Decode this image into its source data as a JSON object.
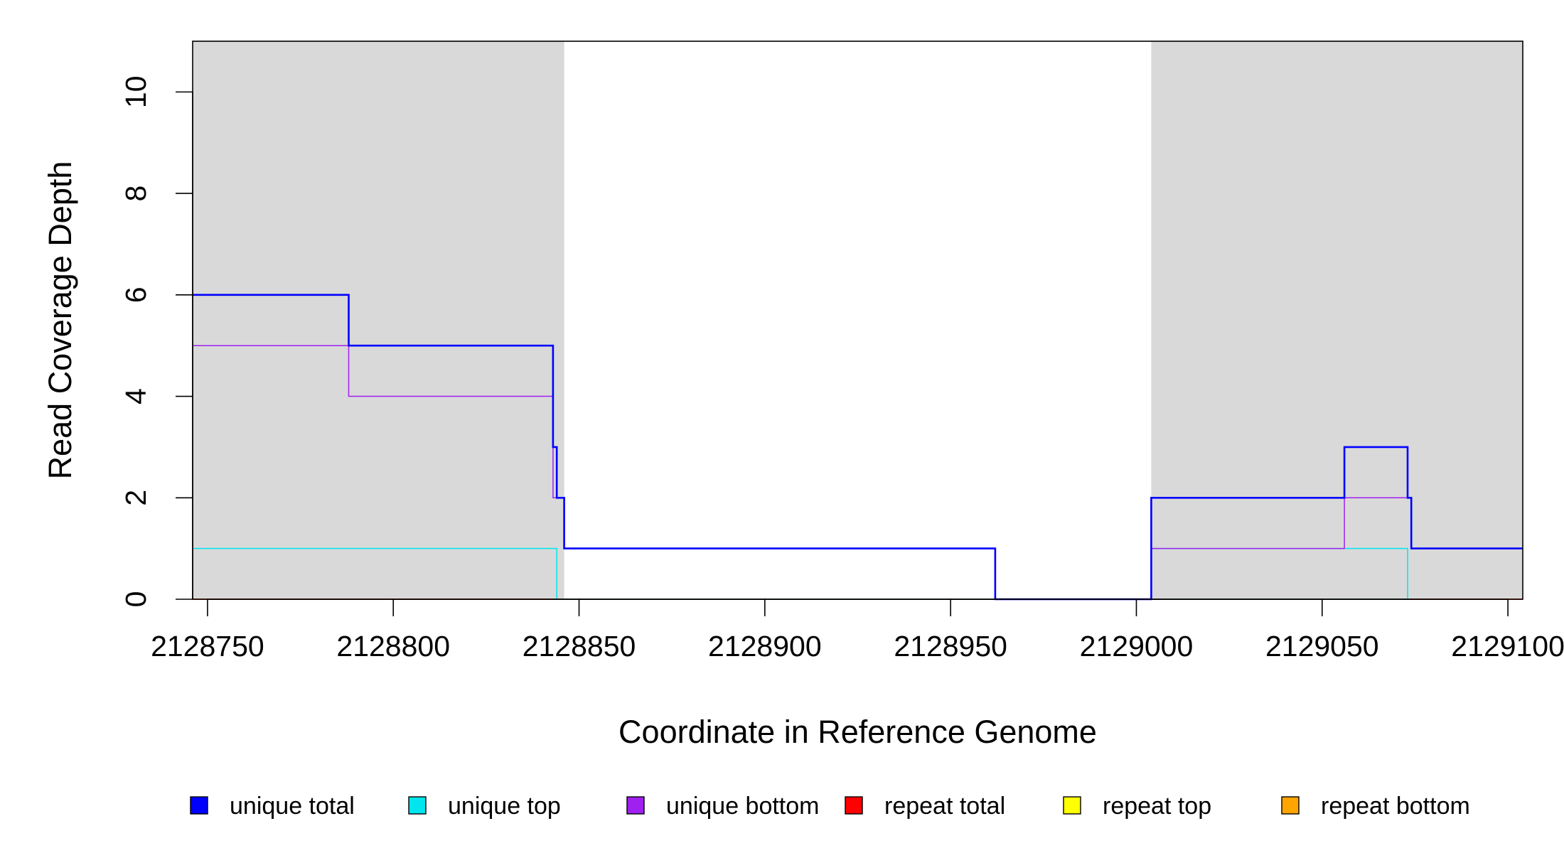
{
  "chart_data": {
    "type": "line",
    "step": true,
    "xlabel": "Coordinate in Reference Genome",
    "ylabel": "Read Coverage Depth",
    "xlim": [
      2128746,
      2129104
    ],
    "ylim": [
      0,
      11
    ],
    "xticks": [
      "2128750",
      "2128800",
      "2128850",
      "2128900",
      "2128950",
      "2129000",
      "2129050",
      "2129100"
    ],
    "yticks": [
      "0",
      "2",
      "4",
      "6",
      "8",
      "10"
    ],
    "shaded_regions": [
      [
        2128746,
        2128846
      ],
      [
        2129004,
        2129104
      ]
    ],
    "shade_color": "#d9d9d9",
    "series": [
      {
        "name": "unique total",
        "color": "#0000ff",
        "width": 2.6,
        "points": [
          [
            2128746,
            6
          ],
          [
            2128788,
            6
          ],
          [
            2128788,
            5
          ],
          [
            2128843,
            5
          ],
          [
            2128843,
            3
          ],
          [
            2128844,
            3
          ],
          [
            2128844,
            2
          ],
          [
            2128846,
            2
          ],
          [
            2128846,
            1
          ],
          [
            2128962,
            1
          ],
          [
            2128962,
            0
          ],
          [
            2129004,
            0
          ],
          [
            2129004,
            2
          ],
          [
            2129056,
            2
          ],
          [
            2129056,
            3
          ],
          [
            2129073,
            3
          ],
          [
            2129073,
            2
          ],
          [
            2129074,
            2
          ],
          [
            2129074,
            1
          ],
          [
            2129104,
            1
          ]
        ]
      },
      {
        "name": "unique top",
        "color": "#00e5ee",
        "width": 1.5,
        "points": [
          [
            2128746,
            1
          ],
          [
            2128844,
            1
          ],
          [
            2128844,
            0
          ],
          [
            2129073,
            0
          ],
          [
            2129073,
            1
          ],
          [
            2129004,
            1
          ]
        ]
      },
      {
        "name": "unique bottom",
        "color": "#a020f0",
        "width": 1.5,
        "points": [
          [
            2128746,
            5
          ],
          [
            2128788,
            5
          ],
          [
            2128788,
            4
          ],
          [
            2128843,
            4
          ],
          [
            2128843,
            2
          ],
          [
            2128846,
            2
          ],
          [
            2128846,
            1
          ],
          [
            2128962,
            1
          ],
          [
            2128962,
            0
          ],
          [
            2129004,
            0
          ],
          [
            2129004,
            1
          ],
          [
            2129056,
            1
          ],
          [
            2129056,
            2
          ],
          [
            2129074,
            2
          ],
          [
            2129074,
            1
          ],
          [
            2129104,
            1
          ]
        ]
      },
      {
        "name": "repeat total",
        "color": "#ff0000",
        "width": 1.5,
        "points": [
          [
            2128746,
            0
          ],
          [
            2129104,
            0
          ]
        ]
      },
      {
        "name": "repeat top",
        "color": "#ffff00",
        "width": 1.5,
        "points": []
      },
      {
        "name": "repeat bottom",
        "color": "#ffa500",
        "width": 1.5,
        "points": [
          [
            2128746,
            0
          ],
          [
            2129104,
            0
          ]
        ]
      }
    ],
    "legend": {
      "placement": "bottom",
      "items": [
        {
          "label": "unique total",
          "color": "#0000ff"
        },
        {
          "label": "unique top",
          "color": "#00e5ee"
        },
        {
          "label": "unique bottom",
          "color": "#a020f0"
        },
        {
          "label": "repeat total",
          "color": "#ff0000"
        },
        {
          "label": "repeat top",
          "color": "#ffff00"
        },
        {
          "label": "repeat bottom",
          "color": "#ffa500"
        }
      ]
    }
  }
}
